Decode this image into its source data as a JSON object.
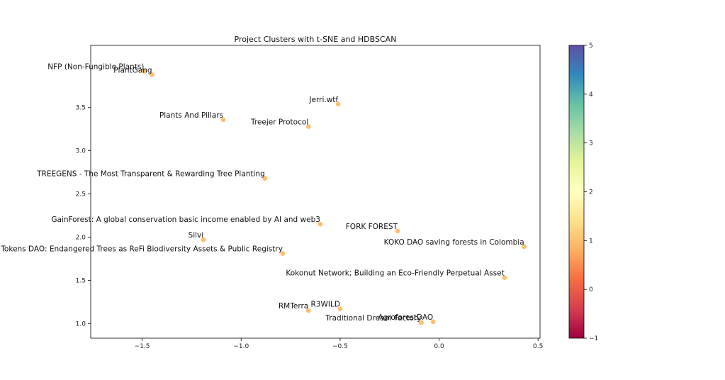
{
  "chart_data": {
    "type": "scatter",
    "title": "Project Clusters with t-SNE and HDBSCAN",
    "xlabel": "",
    "ylabel": "",
    "xlim": [
      -1.76,
      0.51
    ],
    "ylim": [
      0.83,
      4.22
    ],
    "xticks": [
      -1.5,
      -1.0,
      -0.5,
      0.0,
      0.5
    ],
    "xtick_labels": [
      "−1.5",
      "−1.0",
      "−0.5",
      "0.0",
      "0.5"
    ],
    "yticks": [
      1.0,
      1.5,
      2.0,
      2.5,
      3.0,
      3.5
    ],
    "ytick_labels": [
      "1.0",
      "1.5",
      "2.0",
      "2.5",
      "3.0",
      "3.5"
    ],
    "grid": false,
    "point_color": "#fdbe6e",
    "points": [
      {
        "label": "NFP (Non-Fungible Plants)",
        "x": -1.49,
        "y": 3.92,
        "cluster": 1
      },
      {
        "label": "PlantGang",
        "x": -1.45,
        "y": 3.88,
        "cluster": 1
      },
      {
        "label": "Jerri.wtf",
        "x": -0.51,
        "y": 3.54,
        "cluster": 1
      },
      {
        "label": "Plants And Pillars",
        "x": -1.09,
        "y": 3.36,
        "cluster": 1
      },
      {
        "label": "Treejer Protocol",
        "x": -0.66,
        "y": 3.28,
        "cluster": 1
      },
      {
        "label": "TREEGENS - The Most Transparent & Rewarding Tree Planting",
        "x": -0.88,
        "y": 2.68,
        "cluster": 1
      },
      {
        "label": "GainForest: A global conservation basic income enabled by AI and web3",
        "x": -0.6,
        "y": 2.15,
        "cluster": 1
      },
      {
        "label": "FORK FOREST",
        "x": -0.21,
        "y": 2.07,
        "cluster": 1
      },
      {
        "label": "Silvi",
        "x": -1.19,
        "y": 1.97,
        "cluster": 1
      },
      {
        "label": "KOKO DAO saving forests in Colombia",
        "x": 0.43,
        "y": 1.89,
        "cluster": 1
      },
      {
        "label": "ed Tokens DAO: Endangered Trees as ReFi Biodiversity Assets & Public Registry",
        "x": -0.79,
        "y": 1.81,
        "cluster": 1
      },
      {
        "label": "Kokonut Network; Building an Eco-Friendly Perpetual Asset",
        "x": 0.33,
        "y": 1.53,
        "cluster": 1
      },
      {
        "label": "R3WILD",
        "x": -0.5,
        "y": 1.17,
        "cluster": 1
      },
      {
        "label": "RMTerra",
        "x": -0.66,
        "y": 1.15,
        "cluster": 1
      },
      {
        "label": "AgroforestDAO",
        "x": -0.03,
        "y": 1.02,
        "cluster": 1
      },
      {
        "label": "Traditional Dream Factory",
        "x": -0.09,
        "y": 1.01,
        "cluster": 1
      }
    ],
    "colorbar": {
      "min": -1,
      "max": 5,
      "ticks": [
        -1,
        0,
        1,
        2,
        3,
        4,
        5
      ],
      "tick_labels": [
        "−1",
        "0",
        "1",
        "2",
        "3",
        "4",
        "5"
      ],
      "colormap": "Spectral",
      "stops": [
        "#9e0142",
        "#d53e4f",
        "#f46d43",
        "#fdae61",
        "#fee08b",
        "#ffffbf",
        "#e6f598",
        "#abdda4",
        "#66c2a5",
        "#3288bd",
        "#5e4fa2"
      ]
    }
  }
}
